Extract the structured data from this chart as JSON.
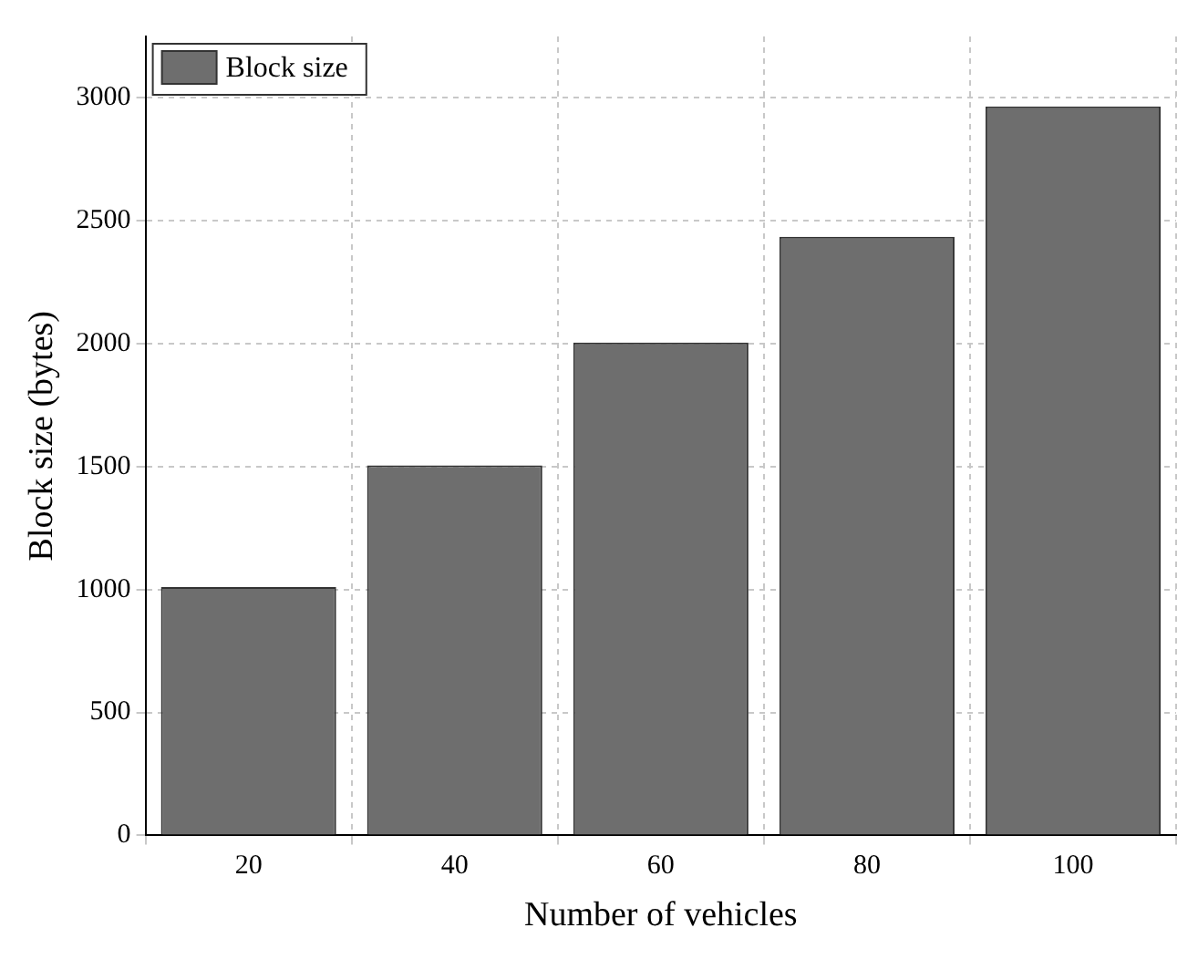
{
  "chart_data": {
    "type": "bar",
    "xlabel": "Number of vehicles",
    "ylabel": "Block size (bytes)",
    "categories": [
      "20",
      "40",
      "60",
      "80",
      "100"
    ],
    "series": [
      {
        "name": "Block size",
        "color": "#6e6e6e",
        "values": [
          1010,
          1505,
          2005,
          2435,
          2965
        ]
      }
    ],
    "ylim": [
      0,
      3250
    ],
    "yticks": [
      0,
      500,
      1000,
      1500,
      2000,
      2500,
      3000
    ],
    "grid": true,
    "legend": "top left"
  }
}
